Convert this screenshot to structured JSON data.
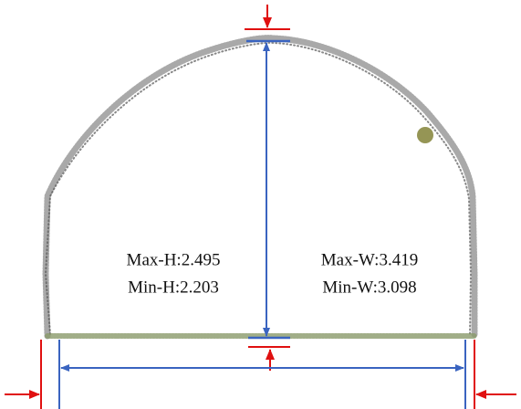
{
  "height_labels": [
    "Max-H:2.495",
    "Min-H:2.203"
  ],
  "width_labels": [
    "Max-W:3.419",
    "Min-W:3.098"
  ]
}
